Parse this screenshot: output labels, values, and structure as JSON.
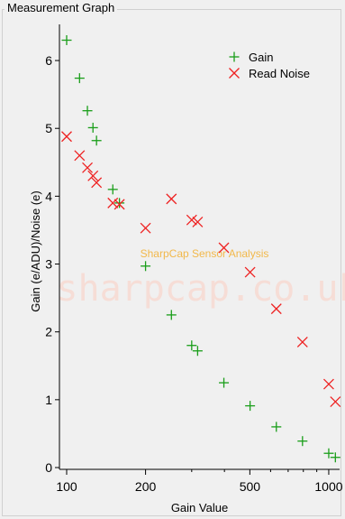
{
  "window": {
    "group_title": "Measurement Graph"
  },
  "watermark": {
    "line1": "SharpCap Sensor Analysis",
    "line2": "sharpcap.co.uk"
  },
  "colors": {
    "gain": "#1a9e1a",
    "read_noise": "#ee2222",
    "watermark_small": "#f2b84a",
    "watermark_big": "#f6ddd6"
  },
  "chart_data": {
    "type": "scatter",
    "title": "",
    "xlabel": "Gain Value",
    "ylabel": "Gain (e/ADU)/Noise (e)",
    "x_scale": "log",
    "xlim": [
      100,
      1100
    ],
    "ylim": [
      0,
      6.4
    ],
    "x_ticks": [
      100,
      200,
      500,
      1000
    ],
    "x_tick_labels": [
      "100",
      "200",
      "500",
      "1000"
    ],
    "y_ticks": [
      0,
      1,
      2,
      3,
      4,
      5,
      6
    ],
    "y_tick_labels": [
      "0",
      "1",
      "2",
      "3",
      "4",
      "5",
      "6"
    ],
    "legend_position": "top-right",
    "series": [
      {
        "name": "Gain",
        "marker": "plus",
        "x": [
          100,
          112,
          120,
          126,
          130,
          150,
          159,
          200,
          251,
          300,
          316,
          398,
          501,
          631,
          794,
          1000,
          1060
        ],
        "y": [
          6.3,
          5.74,
          5.26,
          5.01,
          4.82,
          4.1,
          3.9,
          2.97,
          2.25,
          1.8,
          1.72,
          1.25,
          0.91,
          0.6,
          0.39,
          0.21,
          0.15
        ]
      },
      {
        "name": "Read Noise",
        "marker": "x",
        "x": [
          100,
          112,
          120,
          126,
          130,
          150,
          159,
          200,
          251,
          300,
          316,
          398,
          501,
          631,
          794,
          1000,
          1060
        ],
        "y": [
          4.88,
          4.6,
          4.42,
          4.3,
          4.2,
          3.9,
          3.88,
          3.53,
          3.96,
          3.65,
          3.62,
          3.24,
          2.88,
          2.34,
          1.85,
          1.23,
          0.97
        ]
      }
    ]
  }
}
